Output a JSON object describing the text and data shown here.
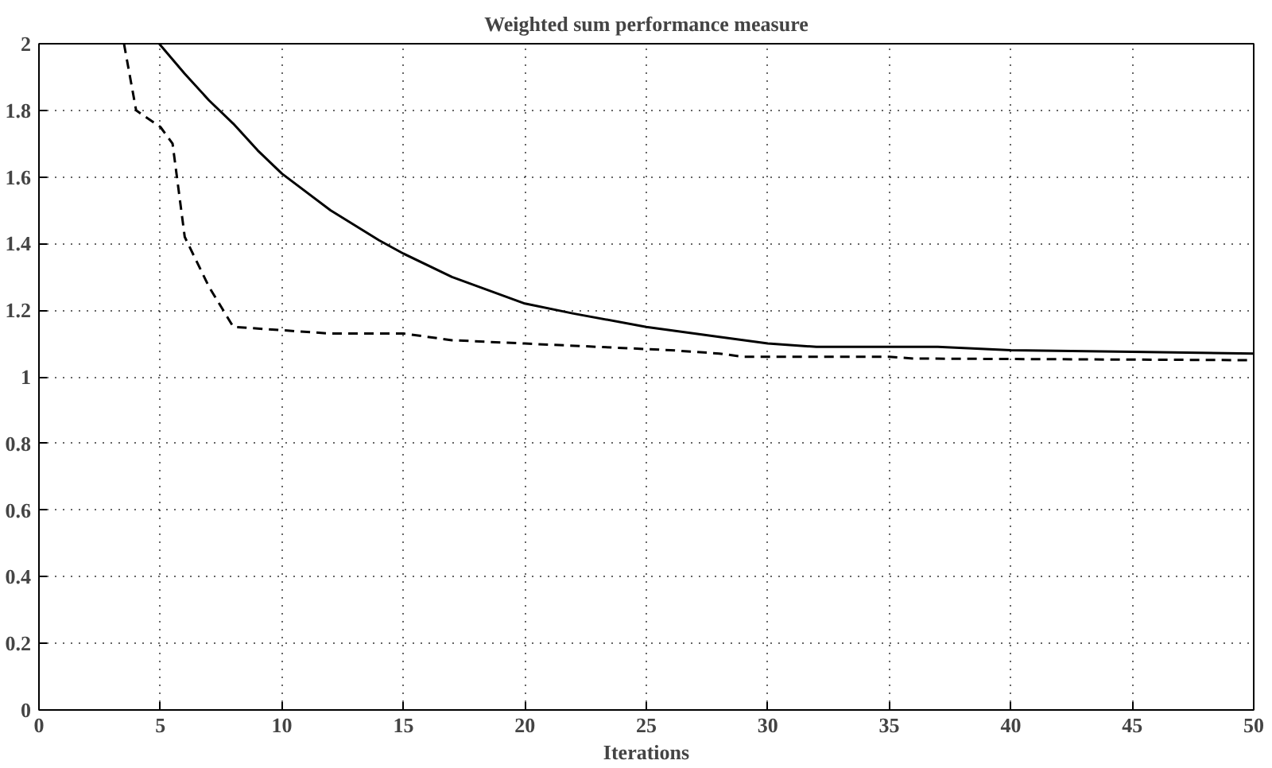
{
  "chart_data": {
    "type": "line",
    "title": "Weighted sum performance measure",
    "xlabel": "Iterations",
    "xlim": [
      0,
      50
    ],
    "ylim": [
      0,
      2
    ],
    "xticks": [
      0,
      5,
      10,
      15,
      20,
      25,
      30,
      35,
      40,
      45,
      50
    ],
    "yticks": [
      0,
      0.2,
      0.4,
      0.6,
      0.8,
      1,
      1.2,
      1.4,
      1.6,
      1.8,
      2
    ],
    "grid": true,
    "series": [
      {
        "color": "#000000",
        "line_style": "solid",
        "x": [
          4.95,
          6,
          7,
          8,
          9,
          10,
          12,
          14,
          15,
          17,
          20,
          22,
          25,
          28,
          30,
          32,
          35,
          37,
          40,
          45,
          50
        ],
        "values": [
          2,
          1.91,
          1.83,
          1.76,
          1.68,
          1.61,
          1.5,
          1.41,
          1.37,
          1.3,
          1.22,
          1.19,
          1.15,
          1.12,
          1.1,
          1.09,
          1.09,
          1.09,
          1.08,
          1.075,
          1.07
        ]
      },
      {
        "color": "#000000",
        "line_style": "dashed",
        "x": [
          3.5,
          4,
          5,
          5.5,
          6,
          7,
          8,
          10,
          12,
          15,
          17,
          20,
          23,
          26,
          28,
          29,
          35,
          36,
          50
        ],
        "values": [
          2,
          1.8,
          1.75,
          1.7,
          1.42,
          1.27,
          1.15,
          1.14,
          1.13,
          1.13,
          1.11,
          1.1,
          1.09,
          1.08,
          1.07,
          1.06,
          1.06,
          1.055,
          1.05
        ]
      }
    ]
  }
}
